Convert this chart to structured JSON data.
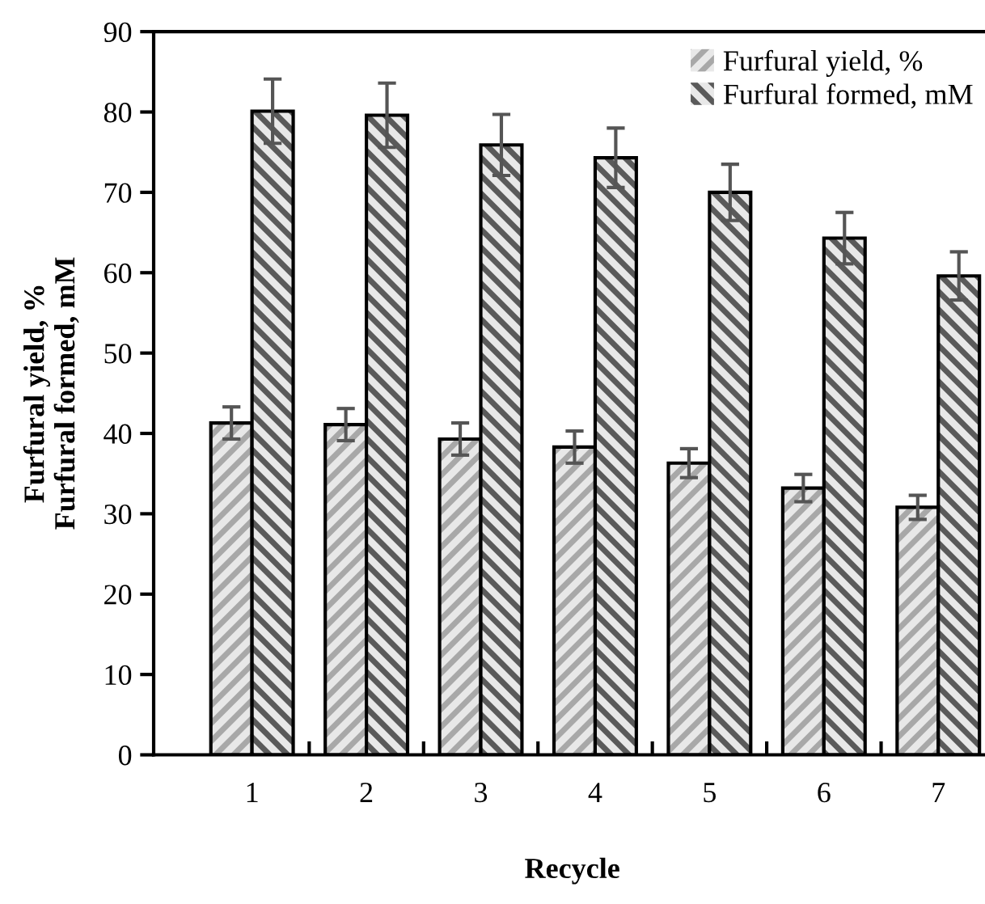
{
  "chart_data": {
    "type": "bar",
    "xlabel": "Recycle",
    "ylabel": "Furfural yield, %\nFurfural formed, mM",
    "categories": [
      "1",
      "2",
      "3",
      "4",
      "5",
      "6",
      "7"
    ],
    "series": [
      {
        "name": "Furfural yield, %",
        "color": "#a8a8a8",
        "values": [
          41.3,
          41.1,
          39.3,
          38.3,
          36.3,
          33.2,
          30.8
        ],
        "errors": [
          2.0,
          2.0,
          2.0,
          2.0,
          1.8,
          1.7,
          1.5
        ]
      },
      {
        "name": "Furfural formed, mM",
        "color": "#5a5a5a",
        "values": [
          80.1,
          79.6,
          75.9,
          74.3,
          70.0,
          64.3,
          59.6
        ],
        "errors": [
          4.0,
          4.0,
          3.8,
          3.7,
          3.5,
          3.2,
          3.0
        ]
      }
    ],
    "ylim": [
      0,
      90
    ],
    "yticks": [
      0,
      10,
      20,
      30,
      40,
      50,
      60,
      70,
      80,
      90
    ],
    "grid": false,
    "legend": "top right"
  }
}
